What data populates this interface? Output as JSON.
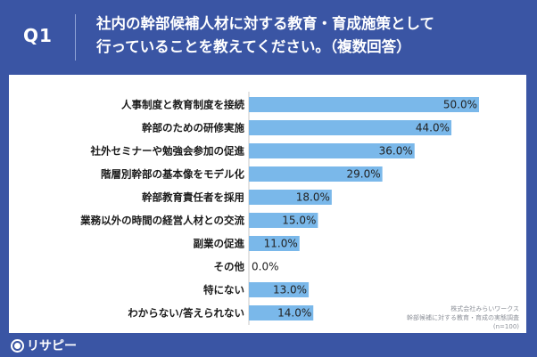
{
  "header": {
    "question_number": "Q1",
    "title_lines": [
      "社内の幹部候補人材に対する教育・育成施策として",
      "行っていることを教えてください。（複数回答）"
    ]
  },
  "footer": {
    "company": "株式会社みらいワークス",
    "survey_name": "幹部候補に対する教育・育成の実態調査",
    "sample": "(n=100)"
  },
  "brand": {
    "logo_text": "リサピー"
  },
  "colors": {
    "background": "#3a55a4",
    "bar": "#7ab8ea",
    "label": "#1a1a1a"
  },
  "chart_data": {
    "type": "bar",
    "orientation": "horizontal",
    "title": "",
    "xlabel": "",
    "ylabel": "",
    "xlim": [
      0,
      50
    ],
    "grid": false,
    "categories": [
      "人事制度と教育制度を接続",
      "幹部のための研修実施",
      "社外セミナーや勉強会参加の促進",
      "階層別幹部の基本像をモデル化",
      "幹部教育責任者を採用",
      "業務以外の時間の経営人材との交流",
      "副業の促進",
      "その他",
      "特にない",
      "わからない/答えられない"
    ],
    "values": [
      50.0,
      44.0,
      36.0,
      29.0,
      18.0,
      15.0,
      11.0,
      0.0,
      13.0,
      14.0
    ],
    "value_labels": [
      "50.0%",
      "44.0%",
      "36.0%",
      "29.0%",
      "18.0%",
      "15.0%",
      "11.0%",
      "0.0%",
      "13.0%",
      "14.0%"
    ]
  }
}
